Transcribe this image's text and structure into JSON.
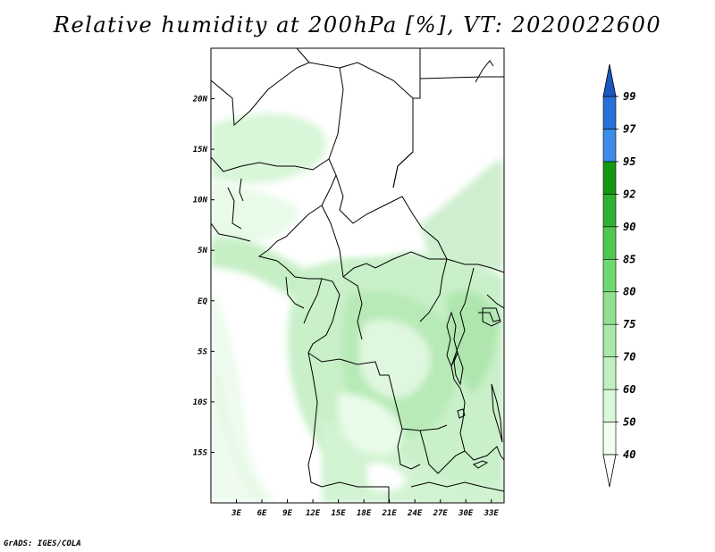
{
  "title": "Relative humidity at 200hPa [%], VT: 2020022600",
  "credit": "GrADS: IGES/COLA",
  "map": {
    "lon_range": [
      0,
      34.5
    ],
    "lat_range": [
      -20,
      25
    ],
    "x_ticks": [
      {
        "lon": 3,
        "label": "3E"
      },
      {
        "lon": 6,
        "label": "6E"
      },
      {
        "lon": 9,
        "label": "9E"
      },
      {
        "lon": 12,
        "label": "12E"
      },
      {
        "lon": 15,
        "label": "15E"
      },
      {
        "lon": 18,
        "label": "18E"
      },
      {
        "lon": 21,
        "label": "21E"
      },
      {
        "lon": 24,
        "label": "24E"
      },
      {
        "lon": 27,
        "label": "27E"
      },
      {
        "lon": 30,
        "label": "30E"
      },
      {
        "lon": 33,
        "label": "33E"
      }
    ],
    "y_ticks": [
      {
        "lat": 20,
        "label": "20N"
      },
      {
        "lat": 15,
        "label": "15N"
      },
      {
        "lat": 10,
        "label": "10N"
      },
      {
        "lat": 5,
        "label": "5N"
      },
      {
        "lat": 0,
        "label": "EQ"
      },
      {
        "lat": -5,
        "label": "5S"
      },
      {
        "lat": -10,
        "label": "10S"
      },
      {
        "lat": -15,
        "label": "15S"
      }
    ]
  },
  "colorbar": {
    "levels": [
      "40",
      "50",
      "60",
      "70",
      "75",
      "80",
      "85",
      "90",
      "92",
      "95",
      "97",
      "99"
    ],
    "colors": [
      "#f0fff0",
      "#d8f8d8",
      "#c0f0c0",
      "#a8e8a8",
      "#90e090",
      "#70d870",
      "#50c850",
      "#30b030",
      "#149814",
      "#3c8ce8",
      "#2870d8",
      "#1858c0"
    ],
    "lower_cap_color": "#ffffff",
    "upper_cap_color": "#1a58c0"
  },
  "colors": {
    "ocean_moist": "#e6f8e6",
    "land_moist": "#c8f0c8",
    "border": "#000000"
  }
}
